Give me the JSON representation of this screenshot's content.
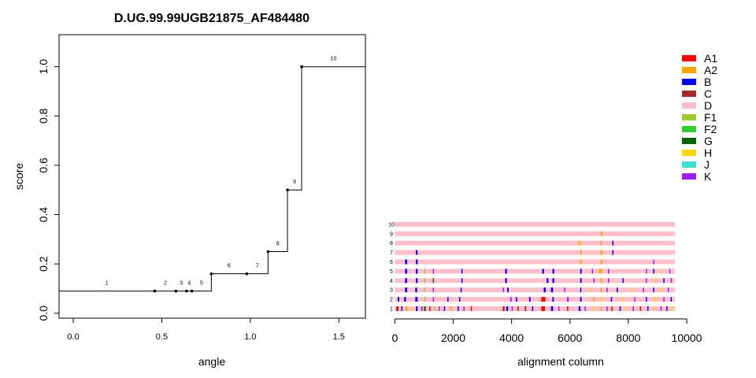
{
  "chart_data": [
    {
      "type": "line",
      "title": "D.UG.99.99UGB21875_AF484480",
      "xlabel": "angle",
      "ylabel": "score",
      "xlim": [
        -0.08,
        1.65
      ],
      "ylim": [
        -0.02,
        1.13
      ],
      "x_ticks": [
        0.0,
        0.5,
        1.0,
        1.5
      ],
      "x_tick_labels": [
        "0.0",
        "0.5",
        "1.0",
        "1.5"
      ],
      "y_ticks": [
        0.0,
        0.2,
        0.4,
        0.6,
        0.8,
        1.0
      ],
      "y_tick_labels": [
        "0.0",
        "0.2",
        "0.4",
        "0.6",
        "0.8",
        "1.0"
      ],
      "step": "post",
      "points": [
        {
          "label": "1",
          "x": 0.0,
          "y": 0.09
        },
        {
          "label": "2",
          "x": 0.46,
          "y": 0.09
        },
        {
          "label": "3",
          "x": 0.58,
          "y": 0.09
        },
        {
          "label": "4",
          "x": 0.64,
          "y": 0.09
        },
        {
          "label": "5",
          "x": 0.67,
          "y": 0.09
        },
        {
          "label": "6",
          "x": 0.78,
          "y": 0.16
        },
        {
          "label": "7",
          "x": 0.98,
          "y": 0.16
        },
        {
          "label": "8",
          "x": 1.1,
          "y": 0.25
        },
        {
          "label": "9",
          "x": 1.21,
          "y": 0.5
        },
        {
          "label": "10",
          "x": 1.29,
          "y": 1.0
        }
      ],
      "point_labels": [
        "1",
        "2",
        "3",
        "4",
        "5",
        "6",
        "7",
        "8",
        "9",
        "10"
      ]
    },
    {
      "type": "heatmap",
      "xlabel": "alignment column",
      "xlim": [
        -200,
        10000
      ],
      "x_ticks": [
        0,
        2000,
        4000,
        6000,
        8000,
        10000
      ],
      "x_tick_labels": [
        "0",
        "2000",
        "4000",
        "6000",
        "8000",
        "10000"
      ],
      "alignment_length": 9600,
      "base_subtype": "D",
      "rows": [
        {
          "label": "1",
          "segments": [
            [
              50,
              120,
              "A1"
            ],
            [
              220,
              260,
              "B"
            ],
            [
              380,
              430,
              "A2"
            ],
            [
              560,
              600,
              "H"
            ],
            [
              720,
              780,
              "B"
            ],
            [
              900,
              950,
              "K"
            ],
            [
              1000,
              1060,
              "G"
            ],
            [
              1180,
              1220,
              "A1"
            ],
            [
              1350,
              1380,
              "F1"
            ],
            [
              1500,
              1540,
              "K"
            ],
            [
              1680,
              1720,
              "B"
            ],
            [
              1900,
              1930,
              "A2"
            ],
            [
              2150,
              2190,
              "B"
            ],
            [
              2350,
              2390,
              "K"
            ],
            [
              2600,
              2640,
              "A1"
            ],
            [
              3700,
              3760,
              "A1"
            ],
            [
              3820,
              3880,
              "B"
            ],
            [
              4000,
              4040,
              "K"
            ],
            [
              4200,
              4240,
              "A1"
            ],
            [
              4450,
              4500,
              "C"
            ],
            [
              4700,
              4740,
              "B"
            ],
            [
              5020,
              5140,
              "A1"
            ],
            [
              5350,
              5420,
              "B"
            ],
            [
              5600,
              5640,
              "K"
            ],
            [
              5900,
              5940,
              "A1"
            ],
            [
              6300,
              6360,
              "B"
            ],
            [
              6500,
              6540,
              "K"
            ],
            [
              6780,
              6820,
              "H"
            ],
            [
              7050,
              7090,
              "A2"
            ],
            [
              7250,
              7290,
              "K"
            ],
            [
              7420,
              7460,
              "A1"
            ],
            [
              7700,
              7740,
              "B"
            ],
            [
              7900,
              7940,
              "H"
            ],
            [
              8150,
              8190,
              "K"
            ],
            [
              8400,
              8440,
              "A1"
            ],
            [
              8650,
              8690,
              "B"
            ],
            [
              8850,
              8890,
              "H"
            ],
            [
              9100,
              9140,
              "K"
            ],
            [
              9300,
              9340,
              "B"
            ],
            [
              9450,
              9490,
              "H"
            ]
          ]
        },
        {
          "label": "2",
          "segments": [
            [
              100,
              150,
              "B"
            ],
            [
              320,
              380,
              "B"
            ],
            [
              700,
              780,
              "B"
            ],
            [
              1000,
              1040,
              "F1"
            ],
            [
              1300,
              1340,
              "K"
            ],
            [
              1800,
              1840,
              "B"
            ],
            [
              2200,
              2240,
              "B"
            ],
            [
              3950,
              4000,
              "K"
            ],
            [
              4150,
              4190,
              "B"
            ],
            [
              4600,
              4650,
              "B"
            ],
            [
              5020,
              5160,
              "A1"
            ],
            [
              5400,
              5450,
              "B"
            ],
            [
              5900,
              5960,
              "K"
            ],
            [
              6350,
              6400,
              "B"
            ],
            [
              6800,
              6840,
              "A2"
            ],
            [
              7050,
              7100,
              "H"
            ],
            [
              7400,
              7440,
              "B"
            ],
            [
              7800,
              7840,
              "H"
            ],
            [
              8200,
              8240,
              "K"
            ],
            [
              8600,
              8640,
              "B"
            ],
            [
              8900,
              8940,
              "H"
            ],
            [
              9200,
              9240,
              "K"
            ],
            [
              9450,
              9490,
              "B"
            ]
          ]
        },
        {
          "label": "3",
          "segments": [
            [
              350,
              420,
              "B"
            ],
            [
              700,
              760,
              "B"
            ],
            [
              1000,
              1040,
              "F1"
            ],
            [
              1300,
              1340,
              "K"
            ],
            [
              2250,
              2290,
              "B"
            ],
            [
              3700,
              3740,
              "K"
            ],
            [
              3850,
              3900,
              "B"
            ],
            [
              5100,
              5170,
              "B"
            ],
            [
              5350,
              5420,
              "B"
            ],
            [
              5800,
              5840,
              "K"
            ],
            [
              6350,
              6390,
              "B"
            ],
            [
              6700,
              6740,
              "H"
            ],
            [
              7050,
              7090,
              "A2"
            ],
            [
              7250,
              7290,
              "K"
            ],
            [
              7600,
              7640,
              "B"
            ],
            [
              8100,
              8140,
              "H"
            ],
            [
              8500,
              8540,
              "K"
            ],
            [
              8850,
              8890,
              "B"
            ],
            [
              9100,
              9140,
              "H"
            ],
            [
              9350,
              9390,
              "K"
            ]
          ]
        },
        {
          "label": "4",
          "segments": [
            [
              350,
              420,
              "B"
            ],
            [
              720,
              780,
              "B"
            ],
            [
              1000,
              1040,
              "F1"
            ],
            [
              1300,
              1340,
              "G"
            ],
            [
              2280,
              2320,
              "B"
            ],
            [
              3780,
              3840,
              "B"
            ],
            [
              5200,
              5260,
              "B"
            ],
            [
              5400,
              5460,
              "B"
            ],
            [
              6350,
              6400,
              "B"
            ],
            [
              6800,
              6840,
              "K"
            ],
            [
              7050,
              7110,
              "A2"
            ],
            [
              7300,
              7340,
              "K"
            ],
            [
              7800,
              7840,
              "B"
            ],
            [
              8600,
              8640,
              "K"
            ],
            [
              8900,
              8940,
              "H"
            ],
            [
              9200,
              9240,
              "B"
            ],
            [
              9450,
              9490,
              "K"
            ]
          ]
        },
        {
          "label": "5",
          "segments": [
            [
              350,
              420,
              "B"
            ],
            [
              720,
              780,
              "B"
            ],
            [
              1000,
              1040,
              "F1"
            ],
            [
              1300,
              1340,
              "K"
            ],
            [
              2280,
              2320,
              "B"
            ],
            [
              3780,
              3840,
              "B"
            ],
            [
              5050,
              5110,
              "B"
            ],
            [
              5400,
              5460,
              "B"
            ],
            [
              6350,
              6400,
              "B"
            ],
            [
              6750,
              6790,
              "K"
            ],
            [
              7000,
              7100,
              "A2"
            ],
            [
              7300,
              7340,
              "K"
            ],
            [
              8600,
              8640,
              "K"
            ],
            [
              8850,
              8890,
              "B"
            ],
            [
              9100,
              9140,
              "H"
            ],
            [
              9400,
              9440,
              "K"
            ]
          ]
        },
        {
          "label": "6",
          "segments": [
            [
              350,
              420,
              "B"
            ],
            [
              720,
              780,
              "B"
            ],
            [
              6350,
              6400,
              "A2"
            ],
            [
              7050,
              7110,
              "A2"
            ],
            [
              8850,
              8890,
              "K"
            ]
          ]
        },
        {
          "label": "7",
          "segments": [
            [
              720,
              780,
              "B"
            ],
            [
              6350,
              6390,
              "A2"
            ],
            [
              7050,
              7110,
              "A2"
            ],
            [
              7450,
              7490,
              "B"
            ]
          ]
        },
        {
          "label": "8",
          "segments": [
            [
              6300,
              6340,
              "A2"
            ],
            [
              6350,
              6390,
              "H"
            ],
            [
              7050,
              7090,
              "A2"
            ],
            [
              7450,
              7490,
              "B"
            ]
          ]
        },
        {
          "label": "9",
          "segments": [
            [
              7050,
              7110,
              "A2"
            ]
          ]
        },
        {
          "label": "10",
          "segments": []
        }
      ]
    }
  ],
  "legend": [
    {
      "label": "A1",
      "color": "#ff0000"
    },
    {
      "label": "A2",
      "color": "#ffa500"
    },
    {
      "label": "B",
      "color": "#0000ff"
    },
    {
      "label": "C",
      "color": "#a52a2a"
    },
    {
      "label": "D",
      "color": "#ffc0cb"
    },
    {
      "label": "F1",
      "color": "#9acd32"
    },
    {
      "label": "F2",
      "color": "#32cd32"
    },
    {
      "label": "G",
      "color": "#006400"
    },
    {
      "label": "H",
      "color": "#ffd700"
    },
    {
      "label": "J",
      "color": "#40e0d0"
    },
    {
      "label": "K",
      "color": "#a020f0"
    }
  ]
}
